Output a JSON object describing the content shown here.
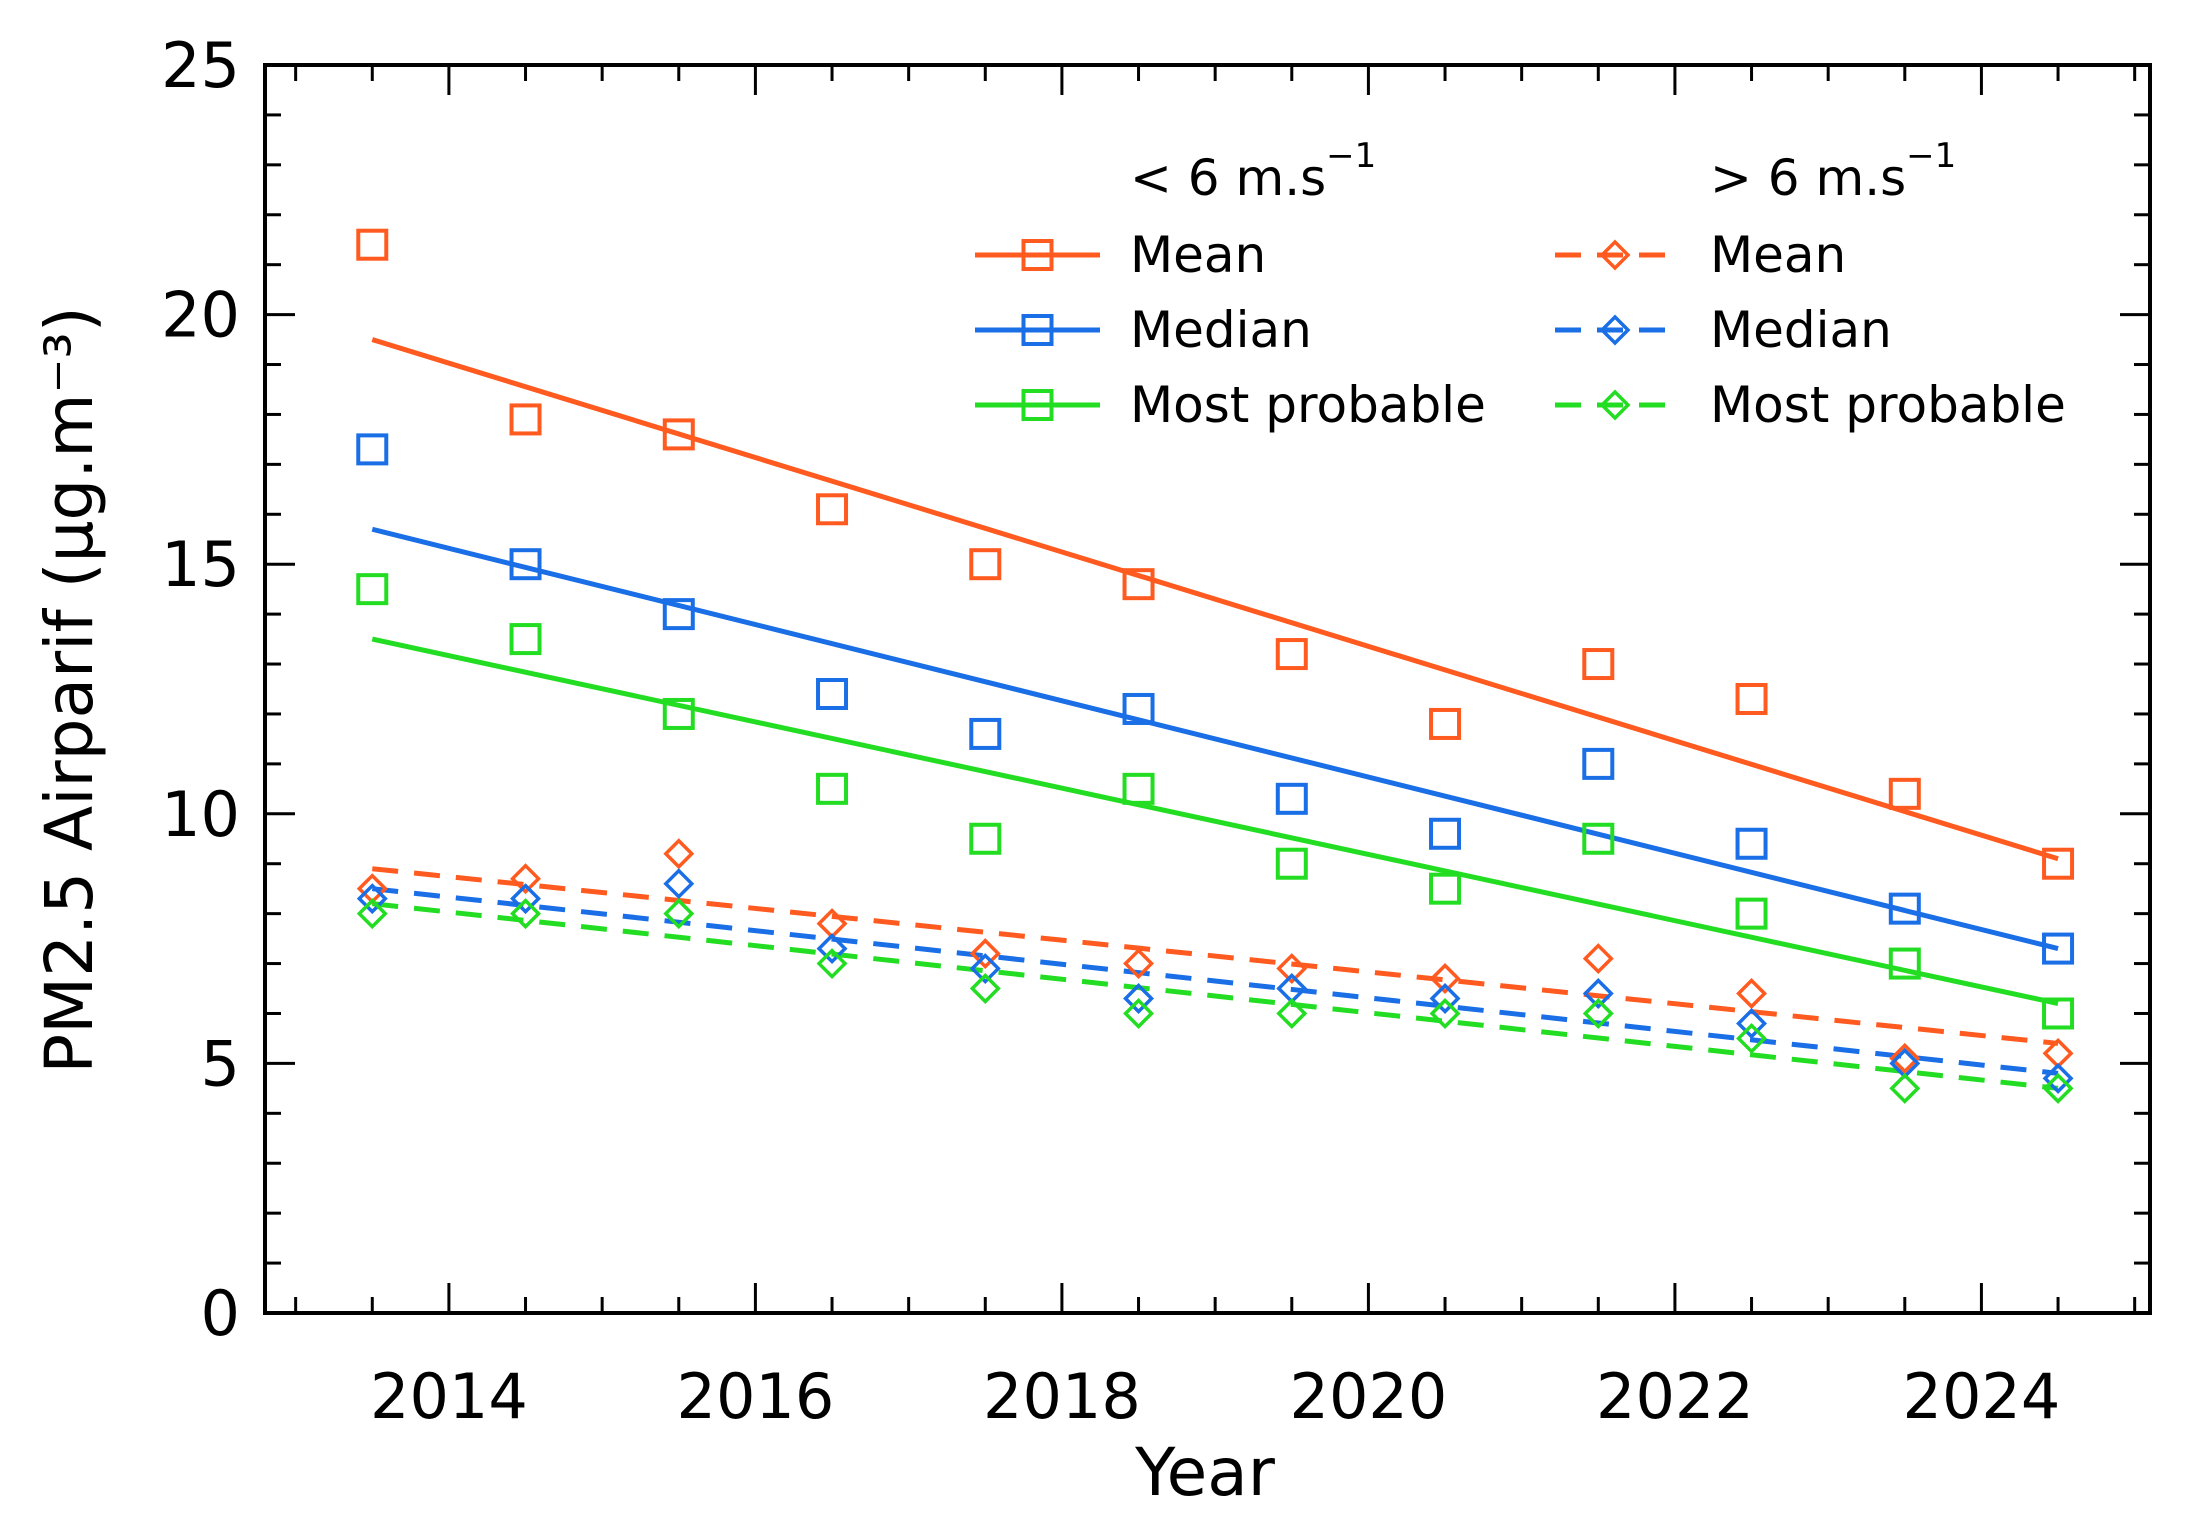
{
  "chart_data": {
    "type": "scatter",
    "title": "",
    "xlabel": "Year",
    "ylabel": "PM2.5 Airparif (μg.m⁻³)",
    "xlim": [
      2012.8,
      2025.1
    ],
    "ylim": [
      0,
      25
    ],
    "x_ticks": [
      "2014",
      "2016",
      "2018",
      "2020",
      "2022",
      "2024"
    ],
    "y_ticks": [
      "0",
      "5",
      "10",
      "15",
      "20",
      "25"
    ],
    "x": [
      2013.5,
      2014.5,
      2015.5,
      2016.5,
      2017.5,
      2018.5,
      2019.5,
      2020.5,
      2021.5,
      2022.5,
      2023.5,
      2024.5
    ],
    "legend": {
      "group_low": {
        "prefix": "< 6 m.s",
        "superscript": "−1"
      },
      "group_high": {
        "prefix": "> 6 m.s",
        "superscript": "−1"
      }
    },
    "series": [
      {
        "name": "Mean",
        "group": "< 6 m.s⁻¹",
        "marker": "square",
        "line": "solid",
        "color": "#ff5a1f",
        "values": [
          21.4,
          17.9,
          17.6,
          16.1,
          15.0,
          14.6,
          13.2,
          11.8,
          13.0,
          12.3,
          10.4,
          9.0
        ],
        "fit": [
          19.5,
          9.1
        ]
      },
      {
        "name": "Median",
        "group": "< 6 m.s⁻¹",
        "marker": "square",
        "line": "solid",
        "color": "#1a6ee6",
        "values": [
          17.3,
          15.0,
          14.0,
          12.4,
          11.6,
          12.1,
          10.3,
          9.6,
          11.0,
          9.4,
          8.1,
          7.3
        ],
        "fit": [
          15.7,
          7.3
        ]
      },
      {
        "name": "Most probable",
        "group": "< 6 m.s⁻¹",
        "marker": "square",
        "line": "solid",
        "color": "#22dd22",
        "values": [
          14.5,
          13.5,
          12.0,
          10.5,
          9.5,
          10.5,
          9.0,
          8.5,
          9.5,
          8.0,
          7.0,
          6.0
        ],
        "fit": [
          13.5,
          6.2
        ]
      },
      {
        "name": "Mean",
        "group": "> 6 m.s⁻¹",
        "marker": "diamond",
        "line": "dashed",
        "color": "#ff5a1f",
        "values": [
          8.5,
          8.7,
          9.2,
          7.8,
          7.2,
          7.0,
          6.9,
          6.7,
          7.1,
          6.4,
          5.1,
          5.2
        ],
        "fit": [
          8.9,
          5.4
        ]
      },
      {
        "name": "Median",
        "group": "> 6 m.s⁻¹",
        "marker": "diamond",
        "line": "dashed",
        "color": "#1a6ee6",
        "values": [
          8.3,
          8.3,
          8.6,
          7.3,
          6.9,
          6.3,
          6.5,
          6.3,
          6.4,
          5.8,
          5.0,
          4.7
        ],
        "fit": [
          8.5,
          4.8
        ]
      },
      {
        "name": "Most probable",
        "group": "> 6 m.s⁻¹",
        "marker": "diamond",
        "line": "dashed",
        "color": "#22dd22",
        "values": [
          8.0,
          8.0,
          8.0,
          7.0,
          6.5,
          6.0,
          6.0,
          6.0,
          6.0,
          5.5,
          4.5,
          4.5
        ],
        "fit": [
          8.2,
          4.5
        ]
      }
    ]
  }
}
